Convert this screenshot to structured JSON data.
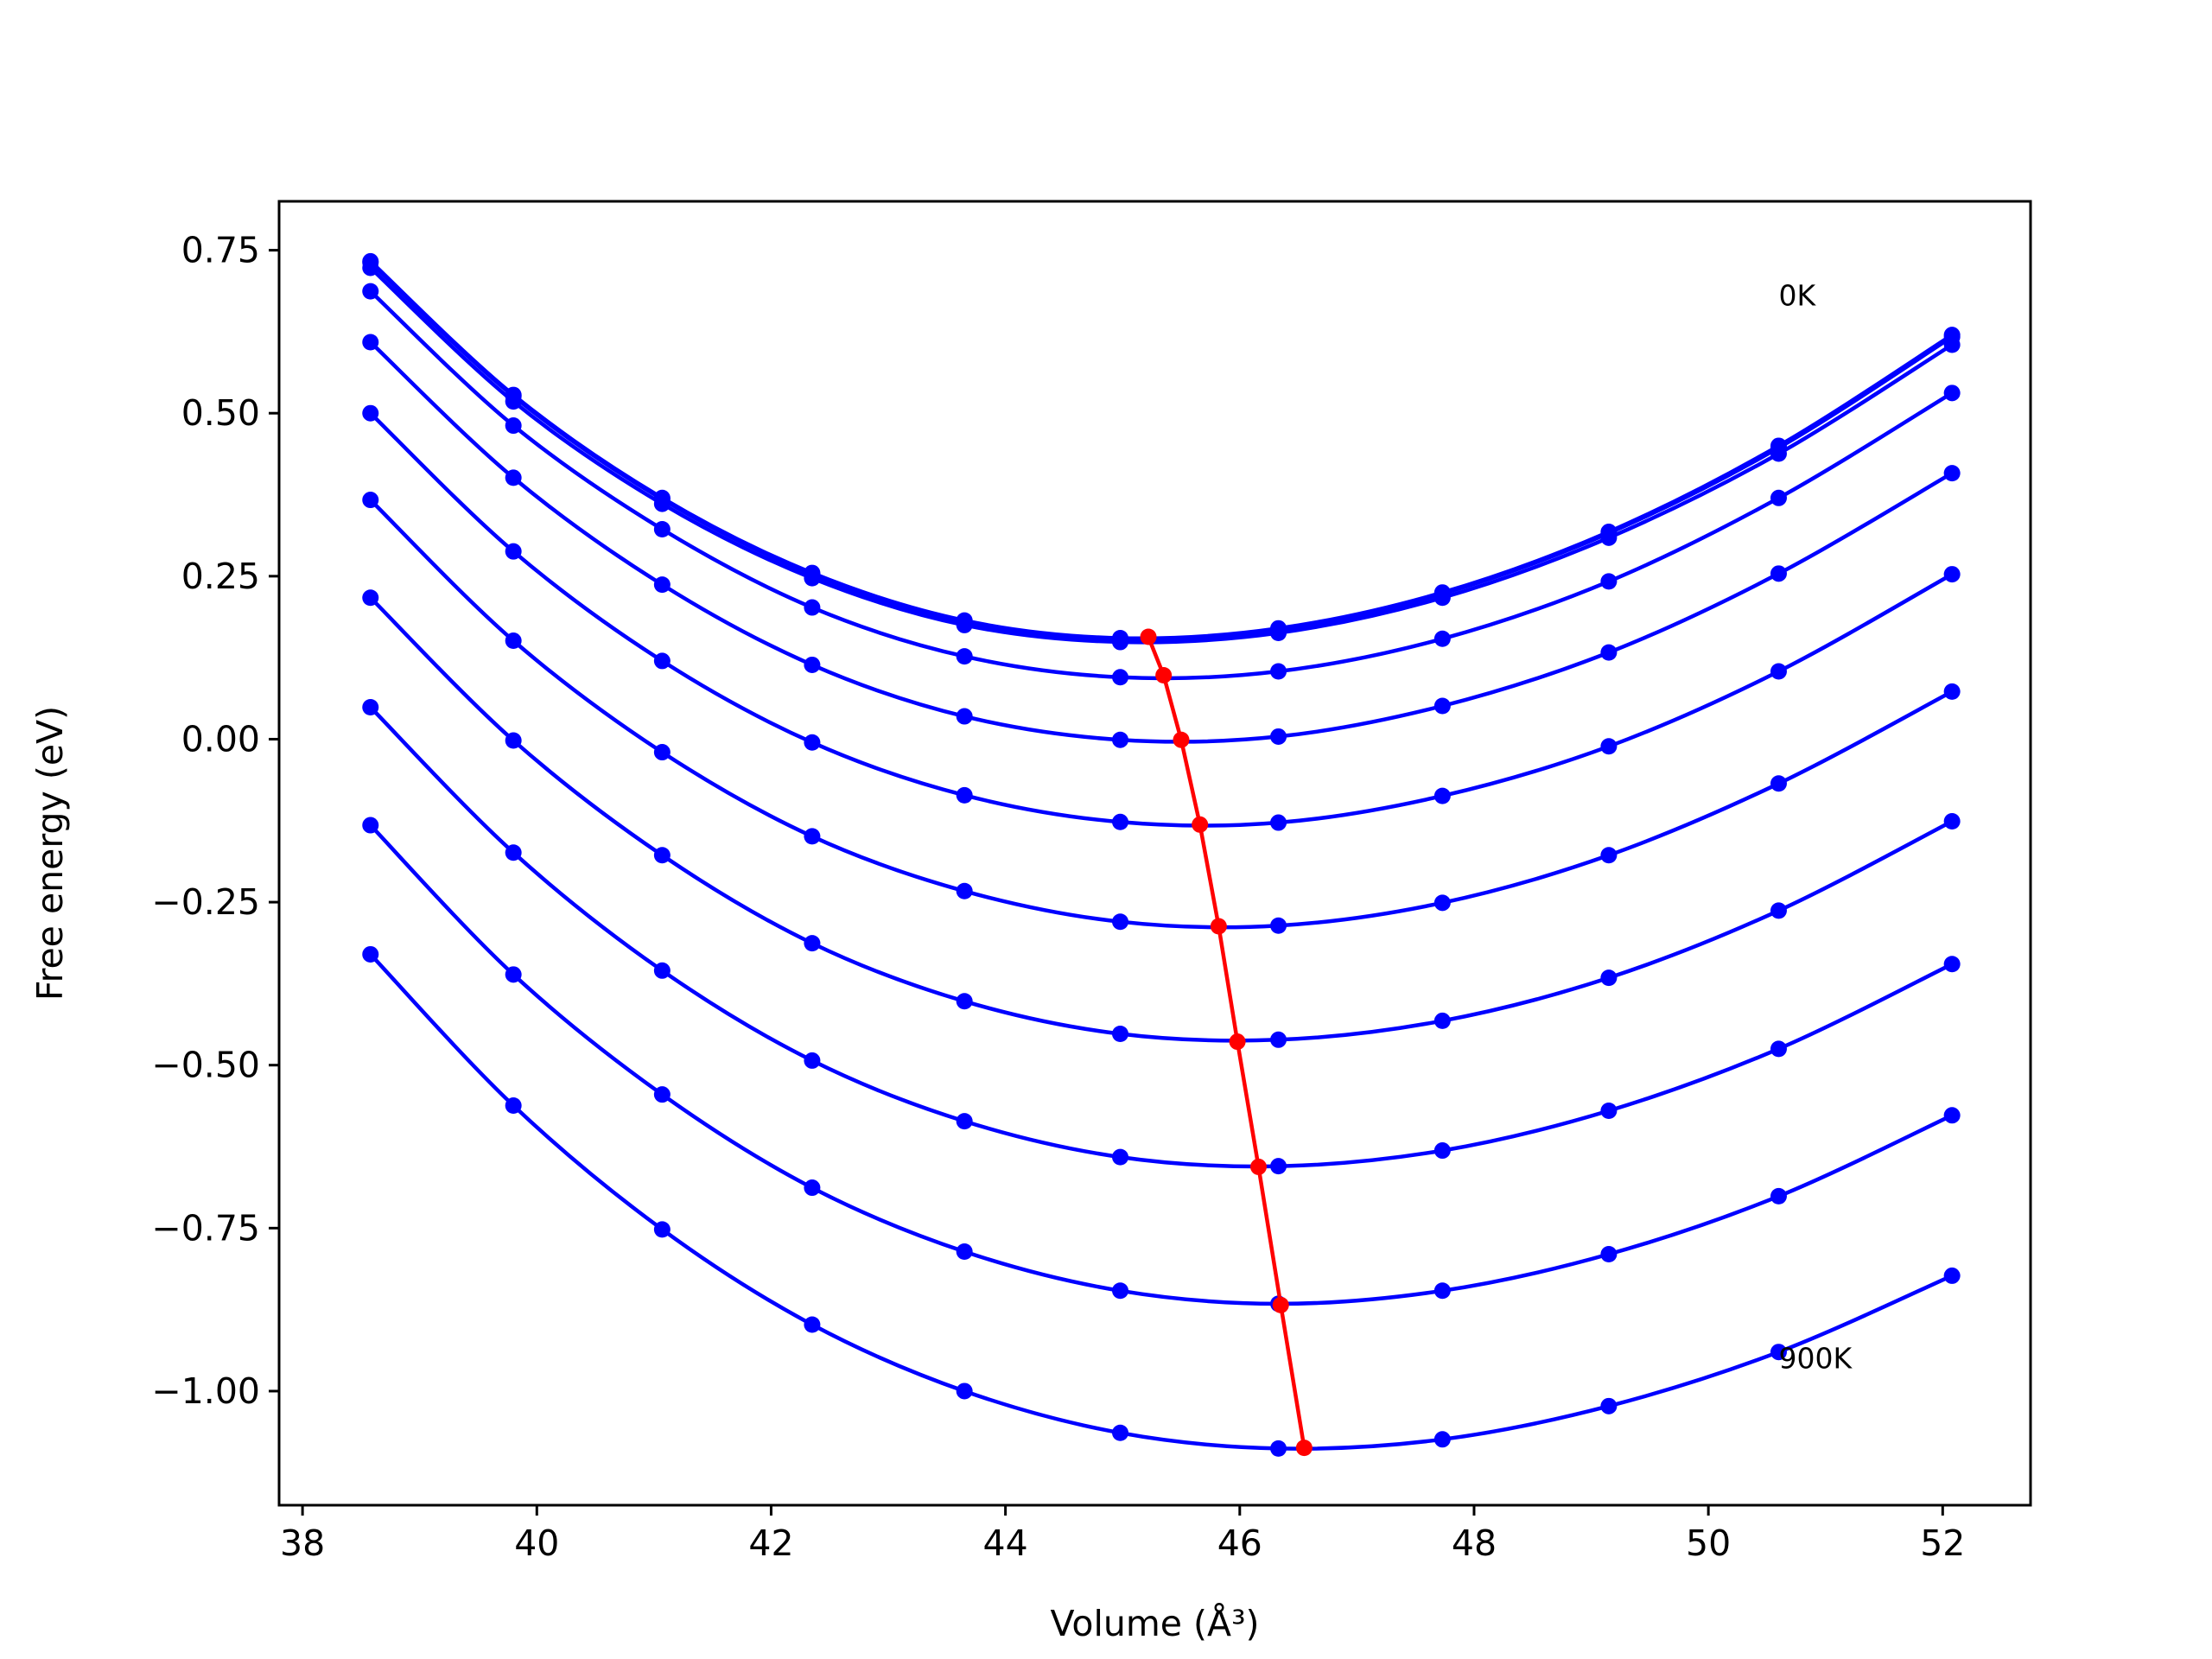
{
  "chart_data": {
    "type": "line",
    "xlabel": "Volume (Å³)",
    "ylabel": "Free energy (eV)",
    "xlim": [
      37.8,
      52.75
    ],
    "ylim": [
      -1.175,
      0.825
    ],
    "xticks": [
      38,
      40,
      42,
      44,
      46,
      48,
      50,
      52
    ],
    "xtick_labels": [
      "38",
      "40",
      "42",
      "44",
      "46",
      "48",
      "50",
      "52"
    ],
    "yticks": [
      0.75,
      0.5,
      0.25,
      0.0,
      -0.25,
      -0.5,
      -0.75,
      -1.0
    ],
    "ytick_labels": [
      "0.75",
      "0.50",
      "0.25",
      "0.00",
      "−0.25",
      "−0.50",
      "−0.75",
      "−1.00"
    ],
    "grid": false,
    "x": [
      38.58,
      39.8,
      41.07,
      42.35,
      43.65,
      44.98,
      46.33,
      47.73,
      49.15,
      50.6,
      52.08
    ],
    "series": [
      {
        "color": "#0000ff",
        "values": [
          0.733,
          0.528,
          0.37,
          0.255,
          0.182,
          0.155,
          0.17,
          0.225,
          0.318,
          0.45,
          0.62
        ]
      },
      {
        "color": "#0000ff",
        "values": [
          0.731,
          0.526,
          0.368,
          0.253,
          0.18,
          0.153,
          0.168,
          0.223,
          0.316,
          0.447,
          0.617
        ]
      },
      {
        "color": "#0000ff",
        "values": [
          0.723,
          0.518,
          0.361,
          0.247,
          0.175,
          0.149,
          0.163,
          0.217,
          0.309,
          0.438,
          0.605
        ]
      },
      {
        "color": "#0000ff",
        "values": [
          0.687,
          0.481,
          0.322,
          0.202,
          0.127,
          0.095,
          0.104,
          0.154,
          0.242,
          0.37,
          0.531
        ]
      },
      {
        "color": "#0000ff",
        "values": [
          0.609,
          0.401,
          0.237,
          0.114,
          0.035,
          -0.001,
          0.004,
          0.051,
          0.133,
          0.254,
          0.408
        ]
      },
      {
        "color": "#0000ff",
        "values": [
          0.5,
          0.288,
          0.12,
          -0.005,
          -0.086,
          -0.127,
          -0.128,
          -0.087,
          -0.011,
          0.104,
          0.253
        ]
      },
      {
        "color": "#0000ff",
        "values": [
          0.367,
          0.151,
          -0.02,
          -0.149,
          -0.233,
          -0.28,
          -0.286,
          -0.251,
          -0.178,
          -0.068,
          0.073
        ]
      },
      {
        "color": "#0000ff",
        "values": [
          0.217,
          -0.002,
          -0.178,
          -0.313,
          -0.402,
          -0.452,
          -0.461,
          -0.432,
          -0.366,
          -0.263,
          -0.126
        ]
      },
      {
        "color": "#0000ff",
        "values": [
          0.049,
          -0.174,
          -0.355,
          -0.493,
          -0.586,
          -0.641,
          -0.655,
          -0.631,
          -0.57,
          -0.475,
          -0.345
        ]
      },
      {
        "color": "#0000ff",
        "values": [
          -0.132,
          -0.361,
          -0.545,
          -0.688,
          -0.786,
          -0.846,
          -0.866,
          -0.846,
          -0.79,
          -0.701,
          -0.577
        ]
      },
      {
        "color": "#0000ff",
        "values": [
          -0.33,
          -0.562,
          -0.752,
          -0.898,
          -1.0,
          -1.064,
          -1.088,
          -1.074,
          -1.023,
          -0.94,
          -0.823
        ]
      }
    ],
    "minimum_curve": {
      "color": "#ff0000",
      "x": [
        45.22,
        45.35,
        45.5,
        45.66,
        45.82,
        45.98,
        46.16,
        46.35,
        46.55
      ],
      "y": [
        0.157,
        0.098,
        -0.001,
        -0.131,
        -0.287,
        -0.464,
        -0.656,
        -0.868,
        -1.087
      ]
    },
    "annotations": [
      {
        "text": "0K",
        "x": 50.6,
        "y": 0.665
      },
      {
        "text": "900K",
        "x": 50.6,
        "y": -0.965
      }
    ]
  }
}
